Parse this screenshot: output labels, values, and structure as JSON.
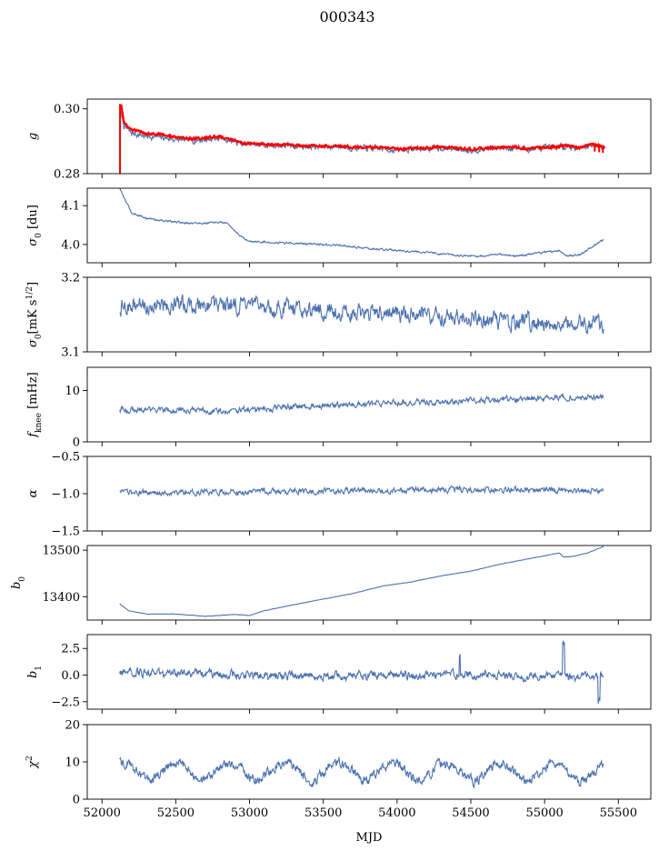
{
  "figure": {
    "title": "000343",
    "xlabel": "MJD",
    "xlim": [
      51900,
      55720
    ],
    "xticks": [
      52000,
      52500,
      53000,
      53500,
      54000,
      54500,
      55000,
      55500
    ],
    "line_color": "#4c72b0",
    "overlay_color": "#ff0000"
  },
  "chart_data": [
    {
      "type": "line",
      "ylabel": "g",
      "ylim": [
        0.28,
        0.303
      ],
      "yticks": [
        0.28,
        0.3
      ],
      "ytick_labels": [
        "0.28",
        "0.30"
      ],
      "series": [
        {
          "style": "main",
          "noise": 0.0007,
          "values": [
            [
              52120,
              0.3
            ],
            [
              52150,
              0.2945
            ],
            [
              52200,
              0.2925
            ],
            [
              52300,
              0.2915
            ],
            [
              52400,
              0.2912
            ],
            [
              52500,
              0.2905
            ],
            [
              52600,
              0.2902
            ],
            [
              52700,
              0.2905
            ],
            [
              52800,
              0.291
            ],
            [
              52870,
              0.2903
            ],
            [
              52950,
              0.2892
            ],
            [
              53100,
              0.2888
            ],
            [
              53300,
              0.2885
            ],
            [
              53500,
              0.2882
            ],
            [
              53600,
              0.2885
            ],
            [
              53700,
              0.288
            ],
            [
              53900,
              0.2877
            ],
            [
              54000,
              0.2872
            ],
            [
              54100,
              0.2875
            ],
            [
              54300,
              0.288
            ],
            [
              54500,
              0.2873
            ],
            [
              54650,
              0.2878
            ],
            [
              54800,
              0.288
            ],
            [
              54900,
              0.2875
            ],
            [
              55000,
              0.2878
            ],
            [
              55150,
              0.2885
            ],
            [
              55250,
              0.2878
            ],
            [
              55320,
              0.289
            ],
            [
              55410,
              0.288
            ]
          ]
        },
        {
          "style": "overlay",
          "noise": 0.0003,
          "values": [
            [
              52130,
              0.3015
            ],
            [
              52150,
              0.2955
            ],
            [
              52200,
              0.2935
            ],
            [
              52300,
              0.2925
            ],
            [
              52400,
              0.2922
            ],
            [
              52500,
              0.2912
            ],
            [
              52600,
              0.2908
            ],
            [
              52700,
              0.291
            ],
            [
              52800,
              0.2915
            ],
            [
              52870,
              0.2905
            ],
            [
              52950,
              0.2895
            ],
            [
              53100,
              0.289
            ],
            [
              53300,
              0.2887
            ],
            [
              53500,
              0.2885
            ],
            [
              53600,
              0.2887
            ],
            [
              53700,
              0.2882
            ],
            [
              53900,
              0.288
            ],
            [
              54000,
              0.2875
            ],
            [
              54100,
              0.2878
            ],
            [
              54300,
              0.2882
            ],
            [
              54500,
              0.2875
            ],
            [
              54650,
              0.288
            ],
            [
              54800,
              0.2882
            ],
            [
              54900,
              0.2877
            ],
            [
              55000,
              0.288
            ],
            [
              55150,
              0.2887
            ],
            [
              55250,
              0.288
            ],
            [
              55320,
              0.2893
            ],
            [
              55410,
              0.288
            ]
          ]
        }
      ]
    },
    {
      "type": "line",
      "ylabel": "σ0 [du]",
      "ylim": [
        3.953,
        4.145
      ],
      "yticks": [
        4.0,
        4.1
      ],
      "ytick_labels": [
        "4.0",
        "4.1"
      ],
      "series": [
        {
          "style": "main",
          "noise": 0.002,
          "values": [
            [
              52120,
              4.145
            ],
            [
              52150,
              4.12
            ],
            [
              52200,
              4.082
            ],
            [
              52300,
              4.068
            ],
            [
              52400,
              4.062
            ],
            [
              52500,
              4.058
            ],
            [
              52600,
              4.055
            ],
            [
              52700,
              4.055
            ],
            [
              52800,
              4.057
            ],
            [
              52850,
              4.055
            ],
            [
              52900,
              4.035
            ],
            [
              52950,
              4.018
            ],
            [
              53000,
              4.008
            ],
            [
              53200,
              4.005
            ],
            [
              53400,
              4.002
            ],
            [
              53600,
              3.998
            ],
            [
              53800,
              3.99
            ],
            [
              54000,
              3.985
            ],
            [
              54200,
              3.98
            ],
            [
              54400,
              3.972
            ],
            [
              54550,
              3.97
            ],
            [
              54700,
              3.975
            ],
            [
              54800,
              3.97
            ],
            [
              54900,
              3.975
            ],
            [
              55000,
              3.98
            ],
            [
              55100,
              3.985
            ],
            [
              55150,
              3.97
            ],
            [
              55250,
              3.975
            ],
            [
              55300,
              3.99
            ],
            [
              55400,
              4.012
            ]
          ]
        }
      ]
    },
    {
      "type": "line",
      "ylabel": "σ0[mK s^1/2]",
      "ylim": [
        3.1,
        3.2
      ],
      "yticks": [
        3.1,
        3.2
      ],
      "ytick_labels": [
        "3.1",
        "3.2"
      ],
      "series": [
        {
          "style": "main",
          "noise": 0.009,
          "values": [
            [
              52120,
              3.16
            ],
            [
              52300,
              3.162
            ],
            [
              52500,
              3.163
            ],
            [
              52700,
              3.163
            ],
            [
              52900,
              3.162
            ],
            [
              53100,
              3.16
            ],
            [
              53300,
              3.159
            ],
            [
              53500,
              3.156
            ],
            [
              53700,
              3.153
            ],
            [
              53900,
              3.15
            ],
            [
              54100,
              3.15
            ],
            [
              54300,
              3.149
            ],
            [
              54500,
              3.147
            ],
            [
              54700,
              3.14
            ],
            [
              54900,
              3.14
            ],
            [
              55100,
              3.139
            ],
            [
              55300,
              3.138
            ],
            [
              55400,
              3.139
            ]
          ]
        }
      ]
    },
    {
      "type": "line",
      "ylabel": "fknee [mHz]",
      "ylim": [
        0,
        14.5
      ],
      "yticks": [
        0,
        10
      ],
      "ytick_labels": [
        "0",
        "10"
      ],
      "series": [
        {
          "style": "main",
          "noise": 0.45,
          "values": [
            [
              52120,
              6.3
            ],
            [
              52500,
              6.1
            ],
            [
              52800,
              6.0
            ],
            [
              53000,
              6.2
            ],
            [
              53300,
              6.8
            ],
            [
              53600,
              7.2
            ],
            [
              53900,
              7.5
            ],
            [
              54200,
              7.8
            ],
            [
              54500,
              8.0
            ],
            [
              54800,
              8.3
            ],
            [
              55100,
              8.6
            ],
            [
              55400,
              8.8
            ]
          ]
        }
      ]
    },
    {
      "type": "line",
      "ylabel": "α",
      "ylim": [
        -1.5,
        -0.5
      ],
      "yticks": [
        -1.5,
        -1.0,
        -0.5
      ],
      "ytick_labels": [
        "−1.5",
        "−1.0",
        "−0.5"
      ],
      "series": [
        {
          "style": "main",
          "noise": 0.03,
          "values": [
            [
              52120,
              -0.99
            ],
            [
              52800,
              -0.98
            ],
            [
              53500,
              -0.96
            ],
            [
              54200,
              -0.95
            ],
            [
              54800,
              -0.95
            ],
            [
              55400,
              -0.96
            ]
          ]
        }
      ]
    },
    {
      "type": "line",
      "ylabel": "b0",
      "ylim": [
        13350,
        13510
      ],
      "yticks": [
        13400,
        13500
      ],
      "ytick_labels": [
        "13400",
        "13500"
      ],
      "series": [
        {
          "style": "main",
          "noise": 0.3,
          "values": [
            [
              52120,
              13385
            ],
            [
              52180,
              13370
            ],
            [
              52300,
              13363
            ],
            [
              52500,
              13363
            ],
            [
              52700,
              13358
            ],
            [
              52900,
              13362
            ],
            [
              53000,
              13360
            ],
            [
              53100,
              13370
            ],
            [
              53300,
              13383
            ],
            [
              53500,
              13395
            ],
            [
              53700,
              13407
            ],
            [
              53900,
              13423
            ],
            [
              54100,
              13432
            ],
            [
              54300,
              13445
            ],
            [
              54500,
              13455
            ],
            [
              54700,
              13470
            ],
            [
              54900,
              13482
            ],
            [
              55000,
              13488
            ],
            [
              55100,
              13494
            ],
            [
              55130,
              13485
            ],
            [
              55200,
              13487
            ],
            [
              55300,
              13495
            ],
            [
              55400,
              13508
            ]
          ]
        }
      ]
    },
    {
      "type": "line",
      "ylabel": "b1",
      "ylim": [
        -3.2,
        3.8
      ],
      "yticks": [
        -2.5,
        0.0,
        2.5
      ],
      "ytick_labels": [
        "−2.5",
        "0.0",
        "2.5"
      ],
      "series": [
        {
          "style": "main",
          "noise": 0.32,
          "values": [
            [
              52120,
              0.3
            ],
            [
              52500,
              0.1
            ],
            [
              53000,
              0.0
            ],
            [
              53500,
              -0.05
            ],
            [
              54000,
              0.0
            ],
            [
              54500,
              0.0
            ],
            [
              55000,
              -0.1
            ],
            [
              55400,
              -0.2
            ]
          ]
        }
      ]
    },
    {
      "type": "line",
      "ylabel": "χ2",
      "ylim": [
        0,
        20
      ],
      "yticks": [
        0,
        10,
        20
      ],
      "ytick_labels": [
        "0",
        "10",
        "20"
      ],
      "series": [
        {
          "style": "main",
          "noise": 1.1,
          "values": [
            [
              52120,
              7.5
            ],
            [
              55400,
              7.5
            ]
          ]
        }
      ]
    }
  ]
}
